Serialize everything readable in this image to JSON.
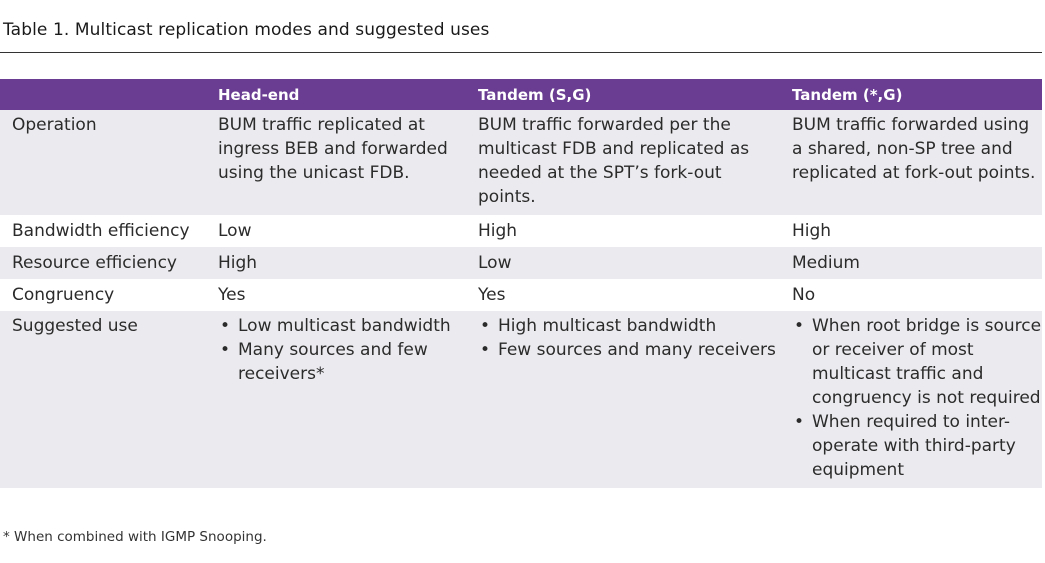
{
  "caption": "Table 1. Multicast replication modes and suggested uses",
  "columns": [
    "",
    "Head-end",
    "Tandem (S,G)",
    "Tandem (*,G)"
  ],
  "rows": [
    {
      "label": "Operation",
      "cells": [
        "BUM traffic replicated at ingress BEB and forwarded using the unicast FDB.",
        "BUM traffic forwarded per the multicast FDB and replicated as needed at the SPT’s fork-out points.",
        "BUM traffic forwarded using a shared, non-SP tree and replicated at fork-out points."
      ]
    },
    {
      "label": "Bandwidth efficiency",
      "cells": [
        "Low",
        "High",
        "High"
      ]
    },
    {
      "label": "Resource efficiency",
      "cells": [
        "High",
        "Low",
        "Medium"
      ]
    },
    {
      "label": "Congruency",
      "cells": [
        "Yes",
        "Yes",
        "No"
      ]
    },
    {
      "label": "Suggested use",
      "bullets": [
        [
          "Low multicast bandwidth",
          "Many sources and few receivers*"
        ],
        [
          "High multicast bandwidth",
          "Few sources and many receivers"
        ],
        [
          "When root bridge is source or receiver of most multicast traffic and congruency is not required",
          "When required to inter-operate with third-party equipment"
        ]
      ]
    }
  ],
  "footnote": "* When combined with IGMP Snooping.",
  "colors": {
    "header_bg": "#6b3d92",
    "header_text": "#ffffff",
    "row_shade": "#ebebef"
  }
}
